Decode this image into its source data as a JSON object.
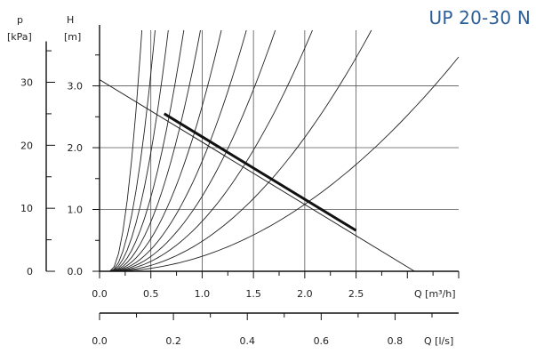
{
  "chart_data": {
    "type": "line",
    "title": "UP 20-30 N",
    "y_left_outer": {
      "symbol": "p",
      "unit": "[kPa]",
      "ticks": [
        0,
        10,
        20,
        30
      ],
      "tick_labels": [
        "0",
        "10",
        "20",
        "30"
      ],
      "range": [
        0,
        30
      ]
    },
    "y_left_inner": {
      "symbol": "H",
      "unit": "[m]",
      "ticks": [
        0,
        1,
        2,
        3
      ],
      "tick_labels": [
        "0.0",
        "1.0",
        "2.0",
        "3.0"
      ],
      "range": [
        0,
        3.9
      ]
    },
    "x_primary": {
      "label": "Q [m³/h]",
      "ticks": [
        0,
        0.5,
        1,
        1.5,
        2,
        2.5
      ],
      "tick_labels": [
        "0.0",
        "0.5",
        "1.0",
        "1.5",
        "2.0",
        "2.5"
      ],
      "range": [
        0,
        3.5
      ]
    },
    "x_secondary": {
      "label": "Q [l/s]",
      "ticks": [
        0,
        0.2,
        0.4,
        0.6,
        0.8
      ],
      "tick_labels": [
        "0.0",
        "0.2",
        "0.4",
        "0.6",
        "0.8"
      ],
      "minor_step": 0.1
    },
    "grid": true,
    "pump_curve": {
      "x": [
        0,
        3.07
      ],
      "y": [
        3.1,
        0
      ]
    },
    "operating_line": {
      "x": [
        0.63,
        2.5
      ],
      "y": [
        2.55,
        0.66
      ]
    },
    "system_curves_k": [
      40,
      20,
      12,
      7.5,
      5,
      3.3,
      2.2,
      1.5,
      1.0,
      0.6,
      0.3
    ],
    "system_curve_q0": 0.1
  }
}
